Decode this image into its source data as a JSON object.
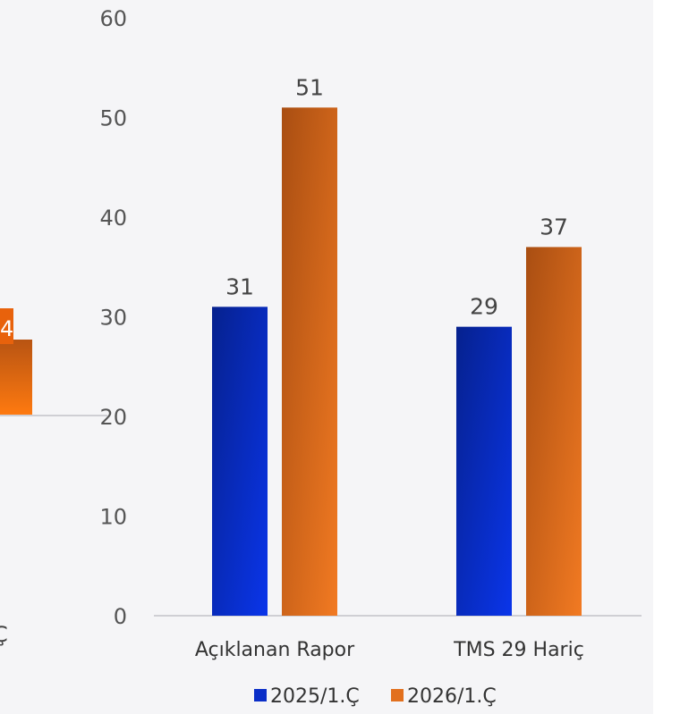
{
  "colors": {
    "series_1": "#0a2ec8",
    "series_2": "#e2701e",
    "axis_line": "#cfcfd4",
    "panel_bg": "#f5f5f7"
  },
  "background_chart": {
    "bar_label_fragment": "4",
    "category_label_fragment": "Ç"
  },
  "chart_data": {
    "type": "bar",
    "categories": [
      "Açıklanan Rapor",
      "TMS 29 Hariç"
    ],
    "series": [
      {
        "name": "2025/1.Ç",
        "values": [
          31,
          29
        ]
      },
      {
        "name": "2026/1.Ç",
        "values": [
          51,
          37
        ]
      }
    ],
    "ylim": [
      0,
      60
    ],
    "yticks": [
      "0",
      "10",
      "20",
      "30",
      "40",
      "50",
      "60"
    ],
    "data_labels": [
      [
        "31",
        "29"
      ],
      [
        "51",
        "37"
      ]
    ],
    "title": "",
    "xlabel": "",
    "ylabel": "",
    "grid": false,
    "legend": "bottom-center"
  }
}
